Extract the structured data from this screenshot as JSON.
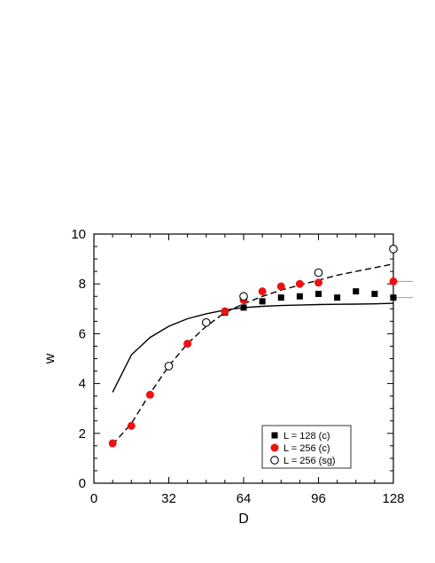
{
  "chart_data": {
    "type": "scatter",
    "xlabel": "D",
    "ylabel": "w",
    "xlim": [
      0,
      128
    ],
    "ylim": [
      0,
      10
    ],
    "xticks": [
      0,
      32,
      64,
      96,
      128
    ],
    "yticks": [
      0,
      2,
      4,
      6,
      8,
      10
    ],
    "legend_position": "bottom-right",
    "series": [
      {
        "name": "L = 128 (c)",
        "marker": "filled-square",
        "color": "#000000",
        "x": [
          56,
          64,
          72,
          80,
          88,
          96,
          104,
          112,
          120,
          128
        ],
        "y": [
          6.85,
          7.05,
          7.3,
          7.45,
          7.5,
          7.6,
          7.45,
          7.7,
          7.6,
          7.45
        ]
      },
      {
        "name": "L = 256 (c)",
        "marker": "filled-circle",
        "color": "#ee1111",
        "x": [
          8,
          16,
          24,
          40,
          56,
          64,
          72,
          80,
          88,
          96,
          128
        ],
        "y": [
          1.6,
          2.3,
          3.55,
          5.6,
          6.9,
          7.35,
          7.7,
          7.9,
          8.0,
          8.05,
          8.1
        ]
      },
      {
        "name": "L = 256 (sg)",
        "marker": "open-circle",
        "color": "#000000",
        "x": [
          32,
          48,
          64,
          96,
          128
        ],
        "y": [
          4.7,
          6.45,
          7.5,
          8.45,
          9.4
        ]
      }
    ],
    "curves": [
      {
        "style": "solid",
        "x": [
          8,
          16,
          24,
          32,
          40,
          48,
          56,
          64,
          72,
          80,
          88,
          96,
          104,
          112,
          120,
          128
        ],
        "y": [
          3.65,
          5.15,
          5.85,
          6.3,
          6.6,
          6.8,
          6.95,
          7.05,
          7.1,
          7.13,
          7.15,
          7.17,
          7.18,
          7.19,
          7.2,
          7.22
        ]
      },
      {
        "style": "dashed",
        "x": [
          8,
          16,
          24,
          32,
          40,
          48,
          56,
          64,
          72,
          80,
          88,
          96,
          104,
          112,
          120,
          128
        ],
        "y": [
          1.55,
          2.4,
          3.6,
          4.7,
          5.6,
          6.3,
          6.85,
          7.2,
          7.5,
          7.75,
          7.95,
          8.15,
          8.35,
          8.5,
          8.65,
          8.8
        ]
      }
    ],
    "reference_lines": [
      8.1,
      7.45
    ]
  }
}
